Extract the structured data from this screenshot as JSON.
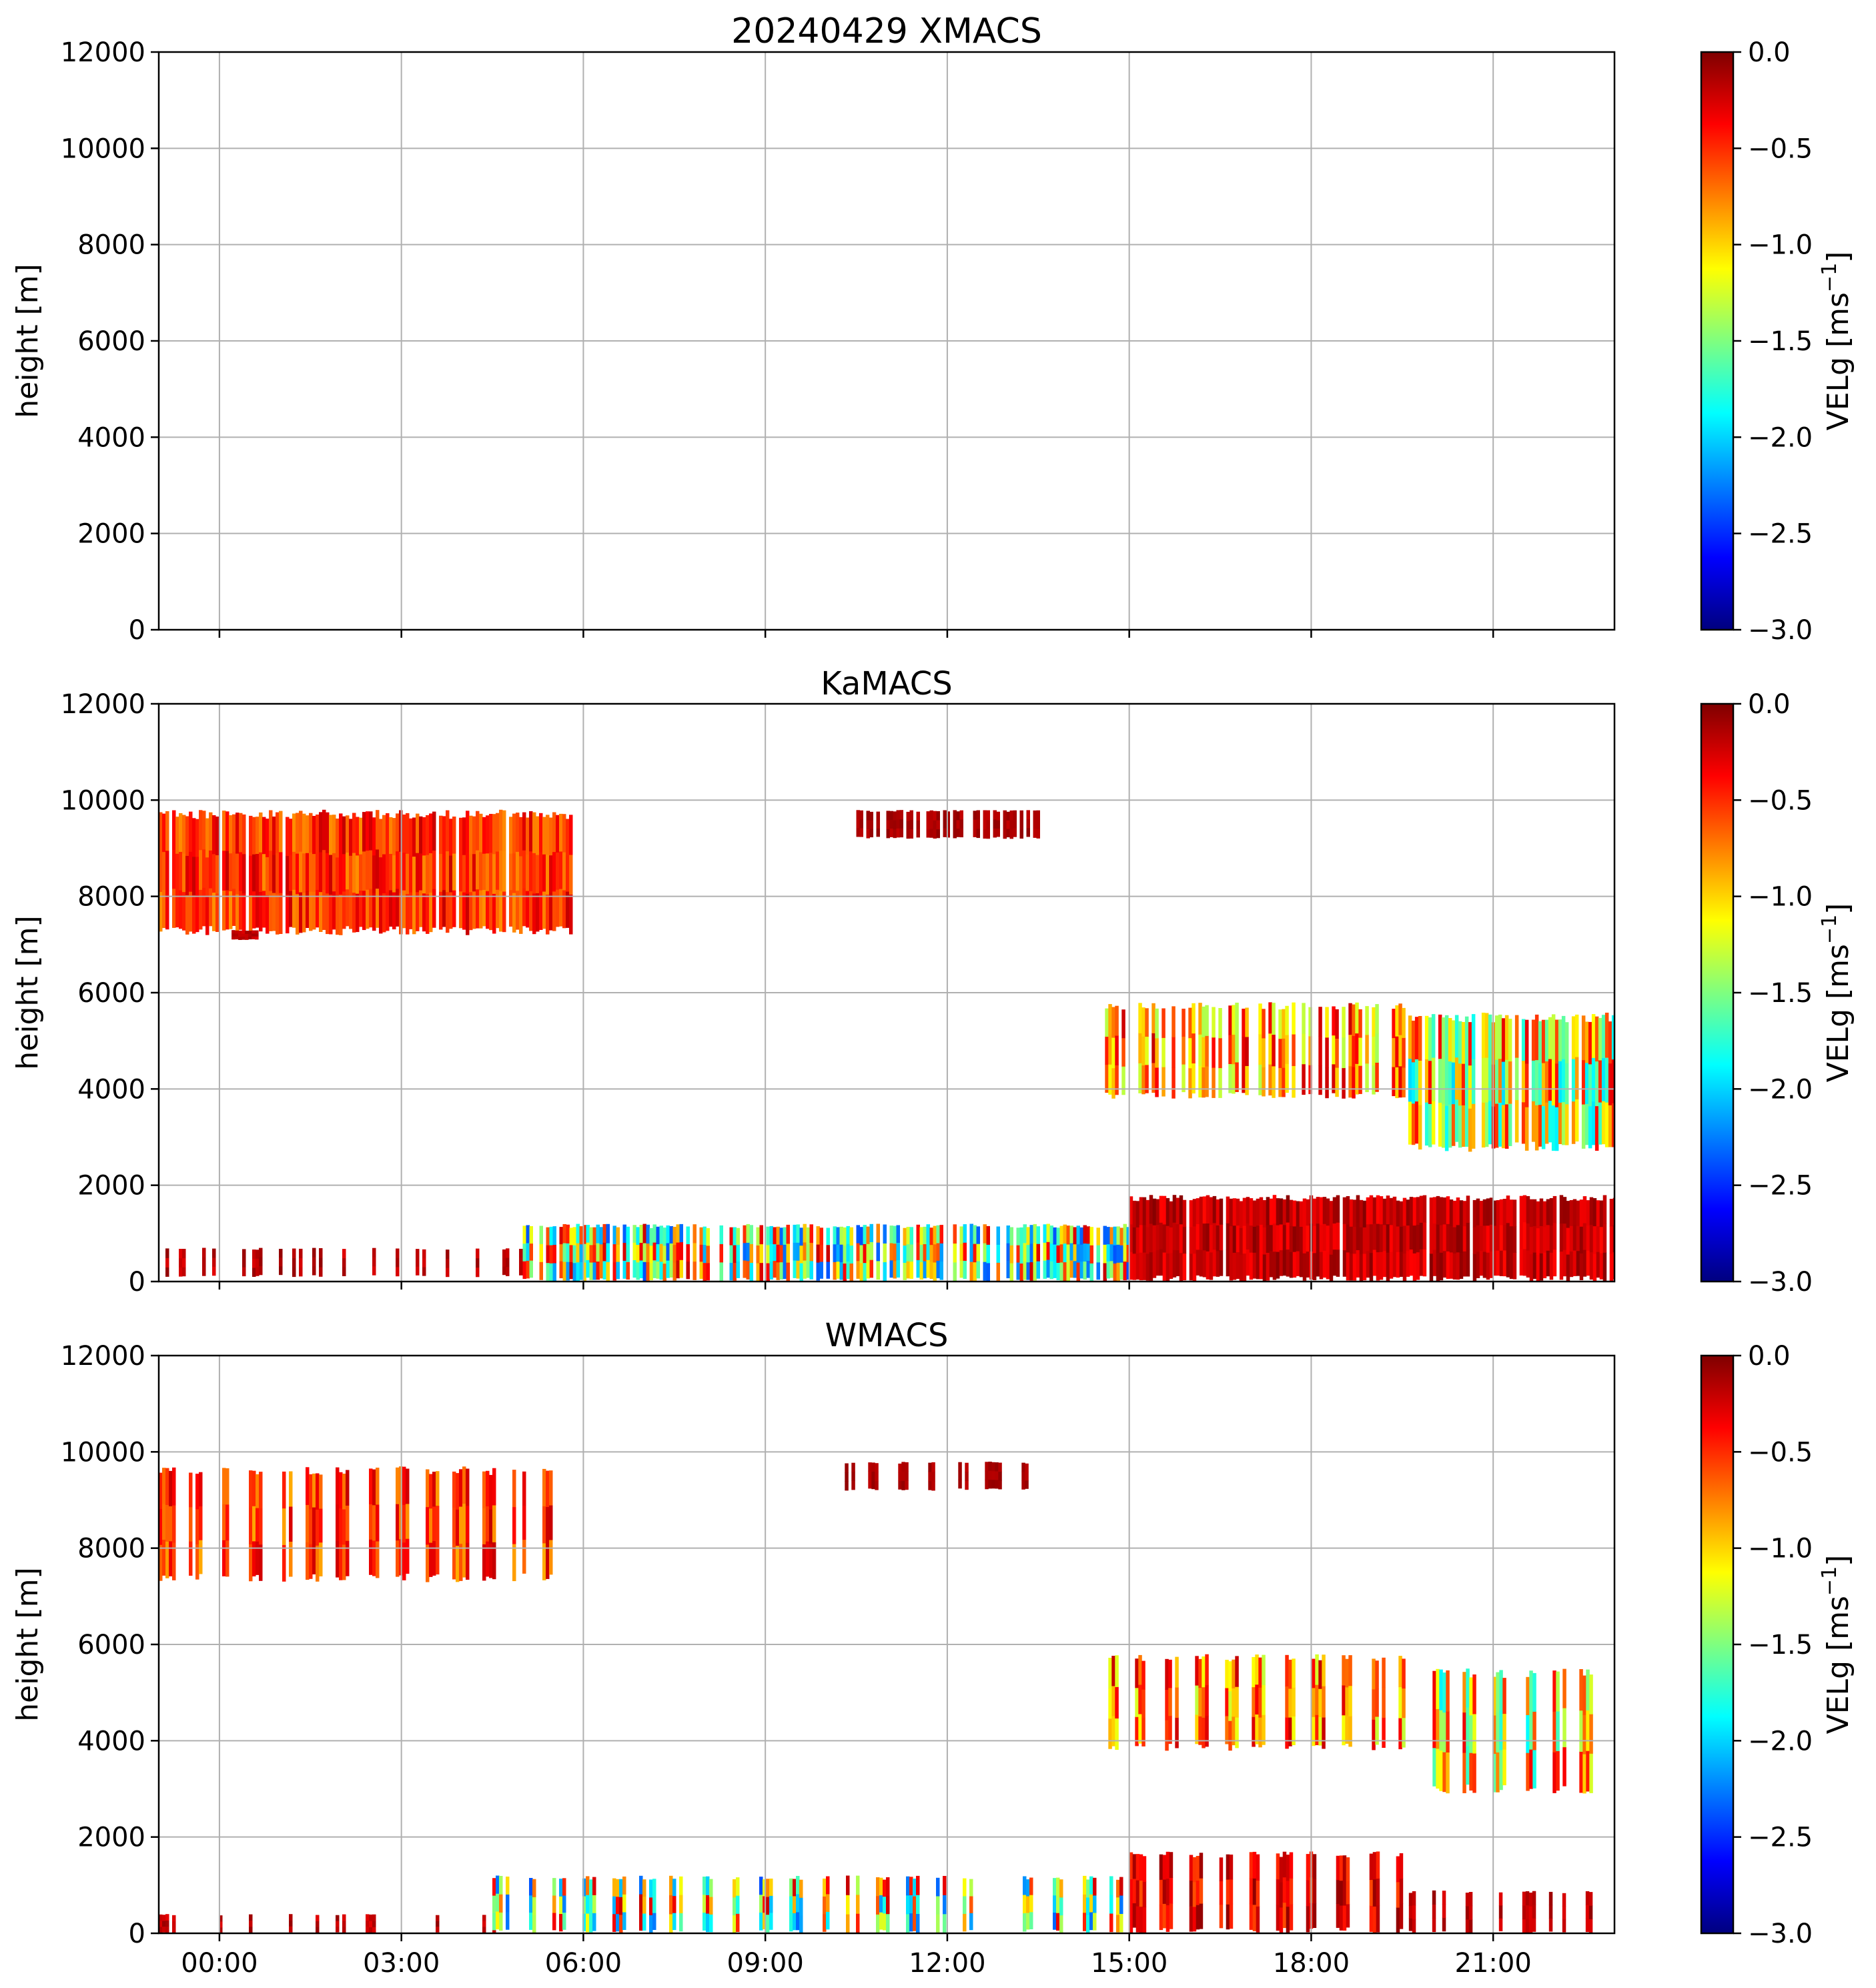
{
  "figure": {
    "colors": {
      "grid": "#b0b0b0",
      "axis": "#000000",
      "colormap": [
        "#00007f",
        "#0000ff",
        "#007fff",
        "#00ffff",
        "#7fff7f",
        "#ffff00",
        "#ff7f00",
        "#ff0000",
        "#7f0000"
      ]
    }
  },
  "chart_data": [
    {
      "type": "heatmap",
      "title": "20240429 XMACS",
      "ylabel": "height [m]",
      "ylim": [
        0,
        12000
      ],
      "yticks": [
        "0",
        "2000",
        "4000",
        "6000",
        "8000",
        "10000",
        "12000"
      ],
      "xlim_hours": [
        -1.0,
        23.0
      ],
      "xticks": [
        "00:00",
        "03:00",
        "06:00",
        "09:00",
        "12:00",
        "15:00",
        "18:00",
        "21:00"
      ],
      "show_xtick_labels": false,
      "grid": true,
      "colorbar": {
        "label": "VELg [ms",
        "label_sup": "−1",
        "label_close": "]",
        "range": [
          -3.0,
          0.0
        ],
        "ticks": [
          "0.0",
          "−0.5",
          "−1.0",
          "−1.5",
          "−2.0",
          "−2.5",
          "−3.0"
        ]
      },
      "regions": []
    },
    {
      "type": "heatmap",
      "title": "KaMACS",
      "ylabel": "height [m]",
      "ylim": [
        0,
        12000
      ],
      "yticks": [
        "0",
        "2000",
        "4000",
        "6000",
        "8000",
        "10000",
        "12000"
      ],
      "xlim_hours": [
        -1.0,
        23.0
      ],
      "xticks": [
        "00:00",
        "03:00",
        "06:00",
        "09:00",
        "12:00",
        "15:00",
        "18:00",
        "21:00"
      ],
      "show_xtick_labels": false,
      "grid": true,
      "colorbar": {
        "label": "VELg [ms",
        "label_sup": "−1",
        "label_close": "]",
        "range": [
          -3.0,
          0.0
        ],
        "ticks": [
          "0.0",
          "−0.5",
          "−1.0",
          "−1.5",
          "−2.0",
          "−2.5",
          "−3.0"
        ]
      },
      "regions": [
        {
          "t0": -1.0,
          "t1": 5.8,
          "h0": 7200,
          "h1": 9800,
          "v0": -0.2,
          "v1": -0.8,
          "density": 0.85
        },
        {
          "t0": 0.2,
          "t1": 0.6,
          "h0": 7100,
          "h1": 7300,
          "v0": -0.1,
          "v1": -0.3,
          "density": 0.9
        },
        {
          "t0": 10.5,
          "t1": 13.5,
          "h0": 9200,
          "h1": 9800,
          "v0": -0.05,
          "v1": -0.2,
          "density": 0.7
        },
        {
          "t0": 14.6,
          "t1": 19.6,
          "h0": 3800,
          "h1": 5800,
          "v0": -0.2,
          "v1": -1.4,
          "density": 0.6
        },
        {
          "t0": 19.6,
          "t1": 23.0,
          "h0": 2700,
          "h1": 5600,
          "v0": -0.3,
          "v1": -2.0,
          "density": 0.8
        },
        {
          "t0": -1.0,
          "t1": 5.0,
          "h0": 100,
          "h1": 700,
          "v0": -0.05,
          "v1": -0.3,
          "density": 0.25
        },
        {
          "t0": 5.0,
          "t1": 15.0,
          "h0": 0,
          "h1": 1200,
          "v0": -0.2,
          "v1": -2.4,
          "density": 0.8
        },
        {
          "t0": 15.0,
          "t1": 23.0,
          "h0": 0,
          "h1": 1800,
          "v0": -0.02,
          "v1": -0.4,
          "density": 0.95
        }
      ]
    },
    {
      "type": "heatmap",
      "title": "WMACS",
      "ylabel": "height [m]",
      "ylim": [
        0,
        12000
      ],
      "yticks": [
        "0",
        "2000",
        "4000",
        "6000",
        "8000",
        "10000",
        "12000"
      ],
      "xlim_hours": [
        -1.0,
        23.0
      ],
      "xticks": [
        "00:00",
        "03:00",
        "06:00",
        "09:00",
        "12:00",
        "15:00",
        "18:00",
        "21:00"
      ],
      "show_xtick_labels": true,
      "grid": true,
      "colorbar": {
        "label": "VELg [ms",
        "label_sup": "−1",
        "label_close": "]",
        "range": [
          -3.0,
          0.0
        ],
        "ticks": [
          "0.0",
          "−0.5",
          "−1.0",
          "−1.5",
          "−2.0",
          "−2.5",
          "−3.0"
        ]
      },
      "regions": [
        {
          "t0": -1.0,
          "t1": 5.7,
          "h0": 7300,
          "h1": 9700,
          "v0": -0.2,
          "v1": -0.9,
          "density": 0.9,
          "strips": true
        },
        {
          "t0": 10.2,
          "t1": 13.6,
          "h0": 9200,
          "h1": 9800,
          "v0": -0.05,
          "v1": -0.2,
          "density": 0.7,
          "strips": true
        },
        {
          "t0": 14.6,
          "t1": 19.5,
          "h0": 3800,
          "h1": 5800,
          "v0": -0.2,
          "v1": -1.3,
          "density": 0.8,
          "strips": true
        },
        {
          "t0": 20.0,
          "t1": 22.8,
          "h0": 2900,
          "h1": 5500,
          "v0": -0.3,
          "v1": -2.0,
          "density": 0.9,
          "strips": true
        },
        {
          "t0": -1.0,
          "t1": 4.5,
          "h0": 0,
          "h1": 400,
          "v0": -0.05,
          "v1": -0.3,
          "density": 0.3,
          "strips": true
        },
        {
          "t0": 4.5,
          "t1": 15.0,
          "h0": 0,
          "h1": 1200,
          "v0": -0.2,
          "v1": -2.4,
          "density": 0.75,
          "strips": true
        },
        {
          "t0": 15.0,
          "t1": 19.5,
          "h0": 0,
          "h1": 1700,
          "v0": -0.05,
          "v1": -0.6,
          "density": 0.85,
          "strips": true
        },
        {
          "t0": 19.5,
          "t1": 22.8,
          "h0": 0,
          "h1": 900,
          "v0": -0.05,
          "v1": -0.3,
          "density": 0.5,
          "strips": true
        }
      ]
    }
  ]
}
